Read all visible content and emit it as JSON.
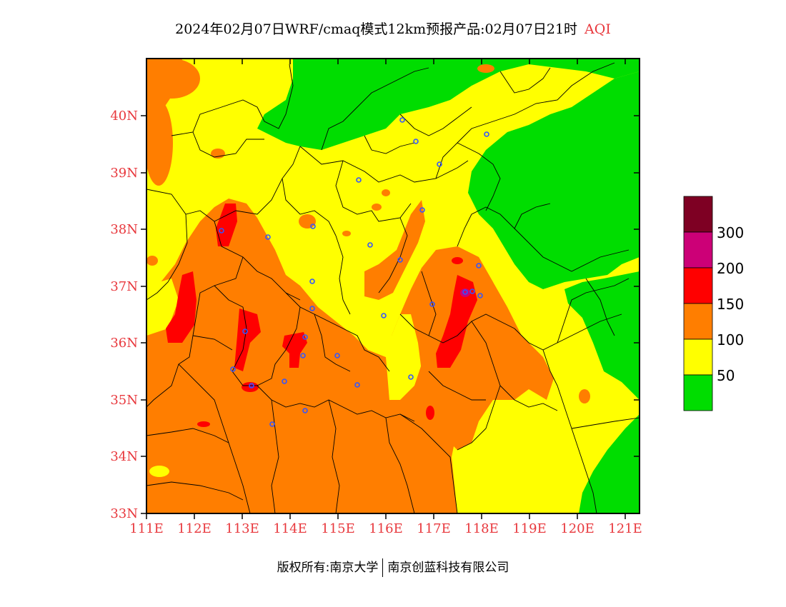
{
  "title": {
    "main": "2024年02月07日WRF/cmaq模式12km预报产品:02月07日21时",
    "variable": "AQI"
  },
  "axes": {
    "lat_labels": [
      "40N",
      "39N",
      "38N",
      "37N",
      "36N",
      "35N",
      "34N",
      "33N"
    ],
    "lon_labels": [
      "111E",
      "112E",
      "113E",
      "114E",
      "115E",
      "116E",
      "117E",
      "118E",
      "119E",
      "120E",
      "121E"
    ]
  },
  "legend": {
    "colors": [
      "#00dd00",
      "#ffff00",
      "#ff7e00",
      "#ff0000",
      "#cc0077",
      "#7e0023"
    ],
    "labels": [
      "50",
      "100",
      "150",
      "200",
      "300"
    ]
  },
  "colors": {
    "good": "#00dd00",
    "moderate": "#ffff00",
    "usg": "#ff7e00",
    "unhealthy": "#ff0000",
    "very_unhealthy": "#cc0077",
    "hazardous": "#7e0023",
    "station_marker": "#3355ff",
    "axis_labels": "#e8383d"
  },
  "footer": {
    "copyright": "版权所有:南京大学",
    "company": "南京创蓝科技有限公司"
  }
}
